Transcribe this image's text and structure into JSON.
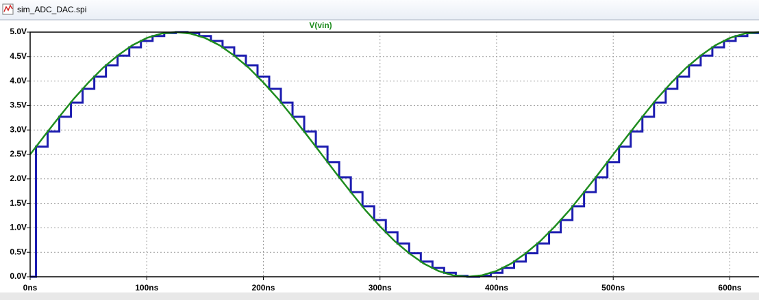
{
  "window": {
    "title": "sim_ADC_DAC.spi"
  },
  "chart_data": {
    "type": "line",
    "series": [
      {
        "name": "V(vin)",
        "color": "#1e8c1e",
        "x": [
          0,
          12.5,
          25,
          37.5,
          50,
          62.5,
          75,
          87.5,
          100,
          112.5,
          125,
          137.5,
          150,
          162.5,
          175,
          187.5,
          200,
          212.5,
          225,
          237.5,
          250,
          262.5,
          275,
          287.5,
          300,
          312.5,
          325,
          337.5,
          350,
          362.5,
          375,
          387.5,
          400,
          412.5,
          425,
          437.5,
          450,
          462.5,
          475,
          487.5,
          500,
          512.5,
          525,
          537.5,
          550,
          562.5,
          575,
          587.5,
          600,
          612.5,
          625
        ],
        "values": [
          2.5,
          2.89,
          3.27,
          3.64,
          3.97,
          4.27,
          4.52,
          4.73,
          4.88,
          4.97,
          5,
          4.97,
          4.88,
          4.73,
          4.52,
          4.27,
          3.97,
          3.64,
          3.27,
          2.89,
          2.5,
          2.11,
          1.73,
          1.36,
          1.03,
          0.73,
          0.48,
          0.27,
          0.12,
          0.03,
          0,
          0.03,
          0.12,
          0.27,
          0.48,
          0.73,
          1.03,
          1.36,
          1.73,
          2.11,
          2.5,
          2.89,
          3.27,
          3.64,
          3.97,
          4.27,
          4.52,
          4.73,
          4.88,
          4.97,
          5
        ]
      },
      {
        "color": "#1c1cb0",
        "step": "post",
        "x": [
          0,
          5,
          15,
          25,
          35,
          45,
          55,
          65,
          75,
          85,
          95,
          105,
          115,
          125,
          135,
          145,
          155,
          165,
          175,
          185,
          195,
          205,
          215,
          225,
          235,
          245,
          255,
          265,
          275,
          285,
          295,
          305,
          315,
          325,
          335,
          345,
          355,
          365,
          375,
          385,
          395,
          405,
          415,
          425,
          435,
          445,
          455,
          465,
          475,
          485,
          495,
          505,
          515,
          525,
          535,
          545,
          555,
          565,
          575,
          585,
          595,
          605,
          615,
          625
        ],
        "values": [
          0,
          2.66,
          2.97,
          3.27,
          3.56,
          3.84,
          4.09,
          4.32,
          4.52,
          4.69,
          4.82,
          4.92,
          4.98,
          5,
          4.98,
          4.92,
          4.82,
          4.69,
          4.52,
          4.32,
          4.09,
          3.84,
          3.56,
          3.27,
          2.97,
          2.66,
          2.34,
          2.03,
          1.73,
          1.44,
          1.16,
          0.91,
          0.68,
          0.48,
          0.31,
          0.18,
          0.08,
          0.02,
          0,
          0.02,
          0.08,
          0.18,
          0.31,
          0.48,
          0.68,
          0.91,
          1.16,
          1.44,
          1.73,
          2.03,
          2.34,
          2.66,
          2.97,
          3.27,
          3.56,
          3.84,
          4.09,
          4.32,
          4.52,
          4.69,
          4.82,
          4.92,
          4.98,
          4.98
        ]
      }
    ],
    "xlim": [
      0,
      625
    ],
    "xticks": [
      {
        "value": 0,
        "label": "0ns"
      },
      {
        "value": 100,
        "label": "100ns"
      },
      {
        "value": 200,
        "label": "200ns"
      },
      {
        "value": 300,
        "label": "300ns"
      },
      {
        "value": 400,
        "label": "400ns"
      },
      {
        "value": 500,
        "label": "500ns"
      },
      {
        "value": 600,
        "label": "600ns"
      }
    ],
    "ylim": [
      0,
      5
    ],
    "yticks": [
      {
        "value": 0,
        "label": "0.0V"
      },
      {
        "value": 0.5,
        "label": "0.5V"
      },
      {
        "value": 1,
        "label": "1.0V"
      },
      {
        "value": 1.5,
        "label": "1.5V"
      },
      {
        "value": 2,
        "label": "2.0V"
      },
      {
        "value": 2.5,
        "label": "2.5V"
      },
      {
        "value": 3,
        "label": "3.0V"
      },
      {
        "value": 3.5,
        "label": "3.5V"
      },
      {
        "value": 4,
        "label": "4.0V"
      },
      {
        "value": 4.5,
        "label": "4.5V"
      },
      {
        "value": 5,
        "label": "5.0V"
      }
    ],
    "grid": true
  }
}
